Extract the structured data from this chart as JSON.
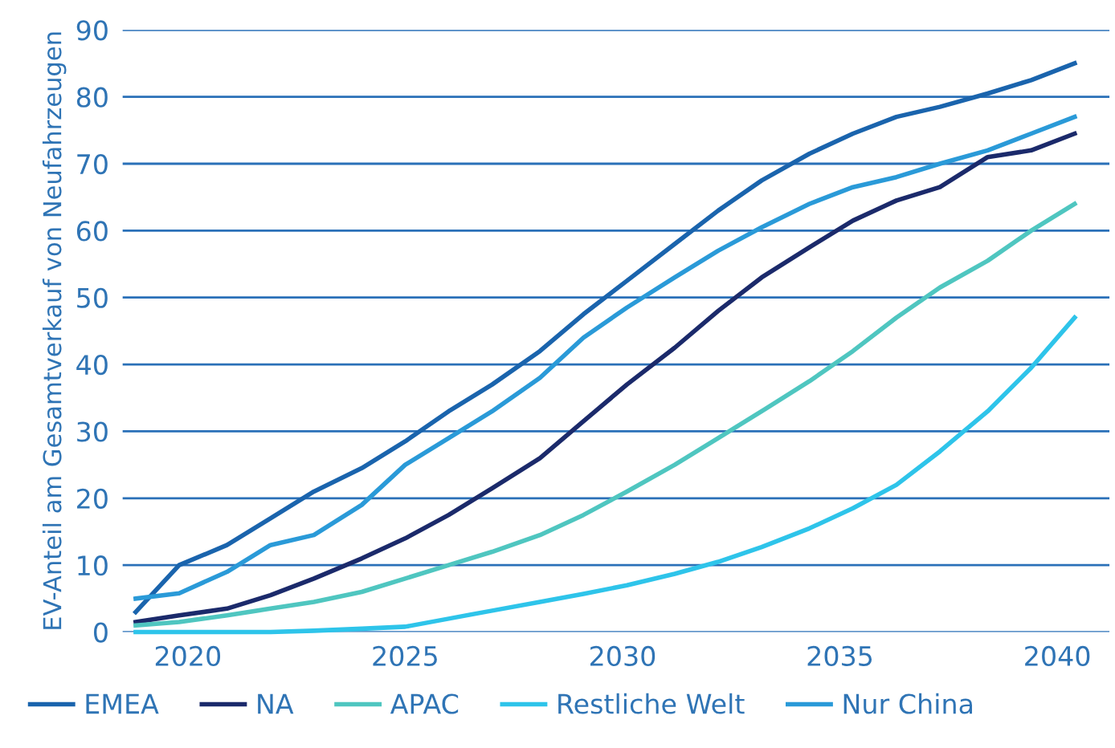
{
  "chart_data": {
    "type": "line",
    "ylabel": "EV-Anteil am Gesamtverkauf von Neufahrzeugen",
    "x": [
      2018.8,
      2019.8,
      2020.9,
      2021.9,
      2022.9,
      2024.0,
      2025.0,
      2026.0,
      2027.0,
      2028.1,
      2029.1,
      2030.1,
      2031.2,
      2032.2,
      2033.2,
      2034.3,
      2035.3,
      2036.3,
      2037.3,
      2038.4,
      2039.4,
      2040.4
    ],
    "xlim": [
      2018.5,
      2041.2
    ],
    "xticks": [
      2020,
      2025,
      2030,
      2035,
      2040
    ],
    "ylim": [
      0,
      90
    ],
    "yticks": [
      0,
      10,
      20,
      30,
      40,
      50,
      60,
      70,
      80,
      90
    ],
    "grid": "y",
    "legend": "bottom",
    "marker": "none",
    "line_style": "solid",
    "series": [
      {
        "name": "EMEA",
        "color": "#1a64ad",
        "values": [
          3,
          10,
          13,
          17,
          21,
          24.5,
          28.5,
          33,
          37,
          42,
          47.5,
          52.5,
          58,
          63,
          67.5,
          71.5,
          74.5,
          77,
          78.5,
          80.5,
          82.5,
          85
        ]
      },
      {
        "name": "NA",
        "color": "#1b2a6b",
        "values": [
          1.5,
          2.5,
          3.5,
          5.5,
          8,
          11,
          14,
          17.5,
          21.5,
          26,
          31.5,
          37,
          42.5,
          48,
          53,
          57.5,
          61.5,
          64.5,
          66.5,
          71,
          72,
          74.5
        ]
      },
      {
        "name": "APAC",
        "color": "#4fc6c0",
        "values": [
          1,
          1.5,
          2.5,
          3.5,
          4.5,
          6,
          8,
          10,
          12,
          14.5,
          17.5,
          21,
          25,
          29,
          33,
          37.5,
          42,
          47,
          51.5,
          55.5,
          60,
          64
        ]
      },
      {
        "name": "Restliche Welt",
        "color": "#2ec4ea",
        "values": [
          0,
          0,
          0,
          0,
          0.2,
          0.5,
          0.8,
          2,
          3.2,
          4.5,
          5.7,
          7,
          8.7,
          10.5,
          12.7,
          15.5,
          18.5,
          22,
          27,
          33,
          39.5,
          47
        ]
      },
      {
        "name": "Nur China",
        "color": "#2a9ad8",
        "values": [
          5,
          5.8,
          9,
          13,
          14.5,
          19,
          25,
          29,
          33,
          38,
          44,
          48.5,
          53,
          57,
          60.5,
          64,
          66.5,
          68,
          70,
          72,
          74.5,
          77
        ]
      }
    ]
  }
}
